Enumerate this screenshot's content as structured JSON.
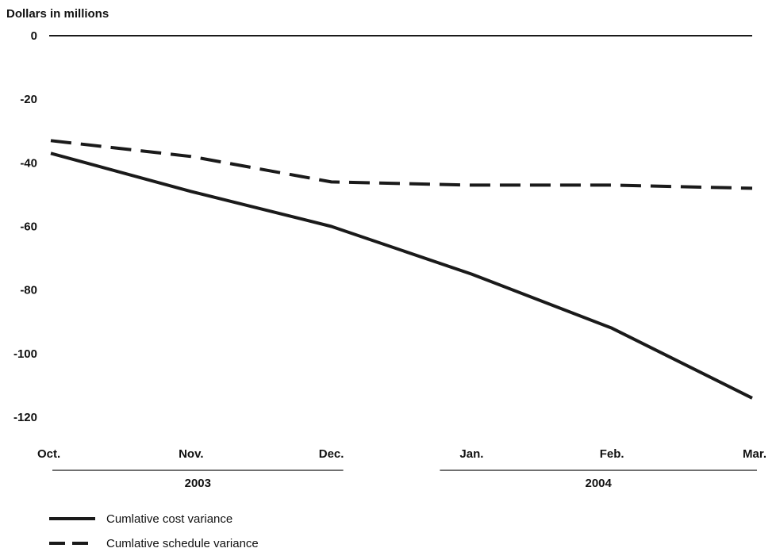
{
  "chart_data": {
    "type": "line",
    "ylabel": "Dollars in millions",
    "categories": [
      "Oct.",
      "Nov.",
      "Dec.",
      "Jan.",
      "Feb.",
      "Mar."
    ],
    "year_groups": [
      {
        "label": "2003",
        "from": 0,
        "to": 2
      },
      {
        "label": "2004",
        "from": 3,
        "to": 5
      }
    ],
    "ylim": [
      -120,
      0
    ],
    "yticks": [
      0,
      -20,
      -40,
      -60,
      -80,
      -100,
      -120
    ],
    "grid": false,
    "legend_position": "bottom-left",
    "series": [
      {
        "name": "Cumlative cost variance",
        "style": "solid",
        "color": "#1a1a1a",
        "values": [
          -37,
          -49,
          -60,
          -75,
          -92,
          -114
        ]
      },
      {
        "name": "Cumlative schedule variance",
        "style": "dashed",
        "color": "#1a1a1a",
        "values": [
          -33,
          -38,
          -46,
          -47,
          -47,
          -48
        ]
      }
    ]
  }
}
